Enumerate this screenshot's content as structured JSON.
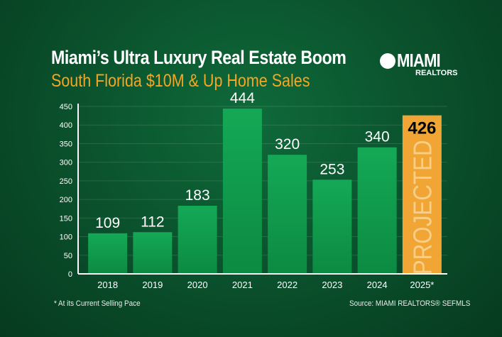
{
  "title": "Miami’s Ultra Luxury Real Estate Boom",
  "subtitle": "South Florida $10M & Up Home Sales",
  "logo": {
    "text": "MIAMI",
    "subtext": "REALTORS"
  },
  "footnote": "* At its Current Selling Pace",
  "source": "Source: MIAMI REALTORS® SEFMLS",
  "chart_data": {
    "type": "bar",
    "title": "Miami’s Ultra Luxury Real Estate Boom",
    "subtitle": "South Florida $10M & Up Home Sales",
    "categories": [
      "2018",
      "2019",
      "2020",
      "2021",
      "2022",
      "2023",
      "2024",
      "2025*"
    ],
    "values": [
      109,
      112,
      183,
      444,
      320,
      253,
      340,
      426
    ],
    "projected": [
      false,
      false,
      false,
      false,
      false,
      false,
      false,
      true
    ],
    "projected_label": "PROJECTED",
    "ylim": [
      0,
      450
    ],
    "yticks": [
      0,
      50,
      100,
      150,
      200,
      250,
      300,
      350,
      400,
      450
    ],
    "grid": true,
    "colors": {
      "bar": "#12a150",
      "projected": "#f0a535",
      "projected_label": "#000000"
    }
  }
}
